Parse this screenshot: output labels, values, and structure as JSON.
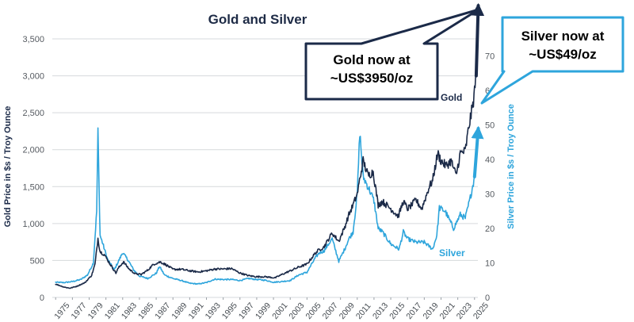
{
  "chart_data": {
    "type": "line",
    "title": "Gold and Silver",
    "xlabel": "",
    "ylabel": "Gold Price in $s / Troy Ounce",
    "y2label": "Silver Price in $s / Troy Ounce",
    "ylim": [
      0,
      3500
    ],
    "y2lim": [
      0,
      75
    ],
    "xlim": [
      1974.6,
      2025.4
    ],
    "yticks": [
      "0",
      "500",
      "1,000",
      "1,500",
      "2,000",
      "2,500",
      "3,000",
      "3,500"
    ],
    "y2ticks": [
      "0",
      "10",
      "20",
      "30",
      "40",
      "50",
      "60",
      "70"
    ],
    "xticks": [
      "1975",
      "1977",
      "1979",
      "1981",
      "1983",
      "1985",
      "1987",
      "1989",
      "1991",
      "1993",
      "1995",
      "1997",
      "1999",
      "2001",
      "2003",
      "2005",
      "2007",
      "2009",
      "2011",
      "2013",
      "2015",
      "2017",
      "2019",
      "2021",
      "2023",
      "2025"
    ],
    "grid": true,
    "colors": {
      "gold": "#1b2a48",
      "silver": "#2ea5dc"
    },
    "series": [
      {
        "name": "Gold",
        "axis": "left",
        "color": "#1b2a48",
        "x": [
          1975.0,
          1976.0,
          1976.7,
          1977.5,
          1978.5,
          1979.3,
          1979.7,
          1980.05,
          1980.3,
          1980.8,
          1981.5,
          1982.2,
          1982.5,
          1983.1,
          1983.8,
          1984.5,
          1985.2,
          1986.0,
          1986.7,
          1987.5,
          1988.2,
          1989.0,
          1990.0,
          1991.0,
          1992.0,
          1993.0,
          1994.0,
          1995.0,
          1996.0,
          1997.0,
          1998.0,
          1999.0,
          2000.0,
          2001.2,
          2002.0,
          2003.0,
          2004.0,
          2005.0,
          2006.0,
          2006.5,
          2007.0,
          2008.0,
          2008.8,
          2009.5,
          2010.0,
          2010.5,
          2011.0,
          2011.7,
          2012.3,
          2012.9,
          2013.5,
          2014.0,
          2014.5,
          2015.0,
          2015.9,
          2016.5,
          2017.0,
          2017.5,
          2018.0,
          2018.7,
          2019.0,
          2019.6,
          2020.0,
          2020.6,
          2021.0,
          2021.6,
          2022.2,
          2022.8,
          2023.3,
          2023.9,
          2024.3,
          2024.8,
          2025.2
        ],
        "values": [
          180,
          140,
          125,
          150,
          200,
          300,
          450,
          800,
          620,
          580,
          450,
          330,
          400,
          480,
          380,
          320,
          310,
          370,
          450,
          480,
          440,
          380,
          380,
          360,
          345,
          360,
          385,
          385,
          390,
          330,
          295,
          280,
          280,
          265,
          310,
          360,
          410,
          450,
          600,
          650,
          680,
          870,
          760,
          950,
          1120,
          1250,
          1400,
          1850,
          1650,
          1700,
          1250,
          1300,
          1250,
          1200,
          1100,
          1300,
          1200,
          1250,
          1320,
          1200,
          1300,
          1500,
          1580,
          1950,
          1850,
          1780,
          1850,
          1650,
          1950,
          1980,
          2300,
          2600,
          3000
        ]
      },
      {
        "name": "Silver",
        "axis": "right",
        "color": "#2ea5dc",
        "x": [
          1975.0,
          1976.0,
          1977.0,
          1978.0,
          1978.8,
          1979.5,
          1979.9,
          1980.05,
          1980.3,
          1980.7,
          1981.2,
          1982.0,
          1982.4,
          1983.0,
          1983.6,
          1984.3,
          1985.0,
          1986.0,
          1987.0,
          1987.4,
          1988.0,
          1989.0,
          1990.0,
          1991.0,
          1992.0,
          1993.0,
          1994.0,
          1995.0,
          1996.0,
          1997.0,
          1998.0,
          1999.0,
          2000.0,
          2001.0,
          2002.0,
          2003.0,
          2004.0,
          2005.0,
          2006.0,
          2006.5,
          2007.0,
          2008.0,
          2008.8,
          2009.5,
          2010.0,
          2010.5,
          2011.0,
          2011.3,
          2011.7,
          2012.5,
          2013.0,
          2013.5,
          2014.0,
          2015.0,
          2016.0,
          2016.5,
          2017.0,
          2018.0,
          2019.0,
          2020.0,
          2020.5,
          2020.8,
          2021.5,
          2022.5,
          2023.3,
          2023.9,
          2024.5,
          2025.0
        ],
        "values": [
          4.4,
          4.3,
          4.6,
          5.2,
          6.5,
          10,
          25,
          48,
          18,
          15,
          11,
          8,
          10,
          13,
          11,
          8,
          6.2,
          5.5,
          7,
          9,
          6.5,
          5.5,
          4.9,
          4.1,
          3.9,
          4.3,
          5.3,
          5.2,
          5.2,
          4.9,
          5.5,
          5.2,
          5.0,
          4.4,
          4.6,
          4.9,
          6.5,
          7.3,
          11.5,
          13,
          13.4,
          17,
          10.5,
          14,
          17,
          19,
          30,
          48,
          35,
          31,
          28,
          20,
          19,
          15.5,
          14,
          19,
          17,
          16,
          16,
          14,
          18,
          26,
          25,
          20,
          24,
          23,
          29,
          35
        ]
      },
      {
        "name": "Gold recent",
        "axis": "left",
        "color": "#1b2a48",
        "x": [
          2025.2,
          2025.45
        ],
        "values": [
          3000,
          3950
        ]
      },
      {
        "name": "Silver recent",
        "axis": "right",
        "color": "#2ea5dc",
        "x": [
          2025.0,
          2025.45
        ],
        "values": [
          35,
          49
        ]
      }
    ],
    "annotations": {
      "gold_series_label": "Gold",
      "silver_series_label": "Silver",
      "gold_callout": [
        "Gold now at",
        "~US$3950/oz"
      ],
      "silver_callout": [
        "Silver now at",
        "~US$49/oz"
      ]
    }
  }
}
